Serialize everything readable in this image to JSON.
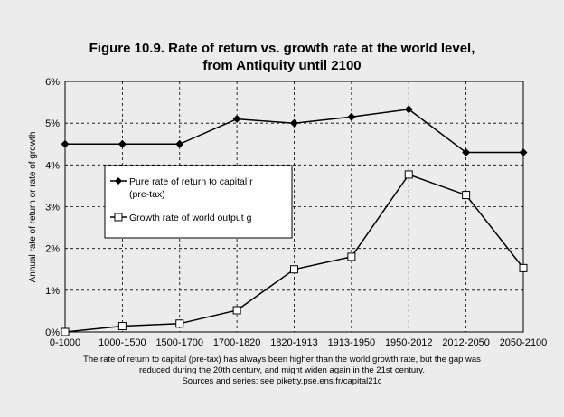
{
  "chart_data": {
    "type": "line",
    "title_lines": [
      "Figure 10.9. Rate of return vs. growth rate at the world level,",
      "from Antiquity until 2100"
    ],
    "ylabel": "Annual rate of return or rate of growth",
    "categories": [
      "0-1000",
      "1000-1500",
      "1500-1700",
      "1700-1820",
      "1820-1913",
      "1913-1950",
      "1950-2012",
      "2012-2050",
      "2050-2100"
    ],
    "ylim": [
      0,
      6
    ],
    "yticks": [
      "0%",
      "1%",
      "2%",
      "3%",
      "4%",
      "5%",
      "6%"
    ],
    "grid": "horizontal dashed",
    "legend_position": "left-center",
    "series": [
      {
        "name_lines": [
          "Pure rate of return to capital r",
          "(pre-tax)"
        ],
        "marker": "diamond-filled",
        "color": "#000000",
        "values": [
          4.5,
          4.5,
          4.5,
          5.1,
          5.0,
          5.15,
          5.33,
          4.3,
          4.3
        ]
      },
      {
        "name_lines": [
          "Growth rate of world output g"
        ],
        "marker": "square-open",
        "color": "#000000",
        "values": [
          0.0,
          0.14,
          0.2,
          0.52,
          1.5,
          1.8,
          3.77,
          3.28,
          1.53
        ]
      }
    ],
    "caption_lines": [
      "The rate of return to capital (pre-tax) has always been higher than the world growth rate, but the gap was",
      "reduced during the 20th century, and might widen again in the 21st century.",
      "Sources and series: see piketty.pse.ens.fr/capital21c"
    ]
  }
}
